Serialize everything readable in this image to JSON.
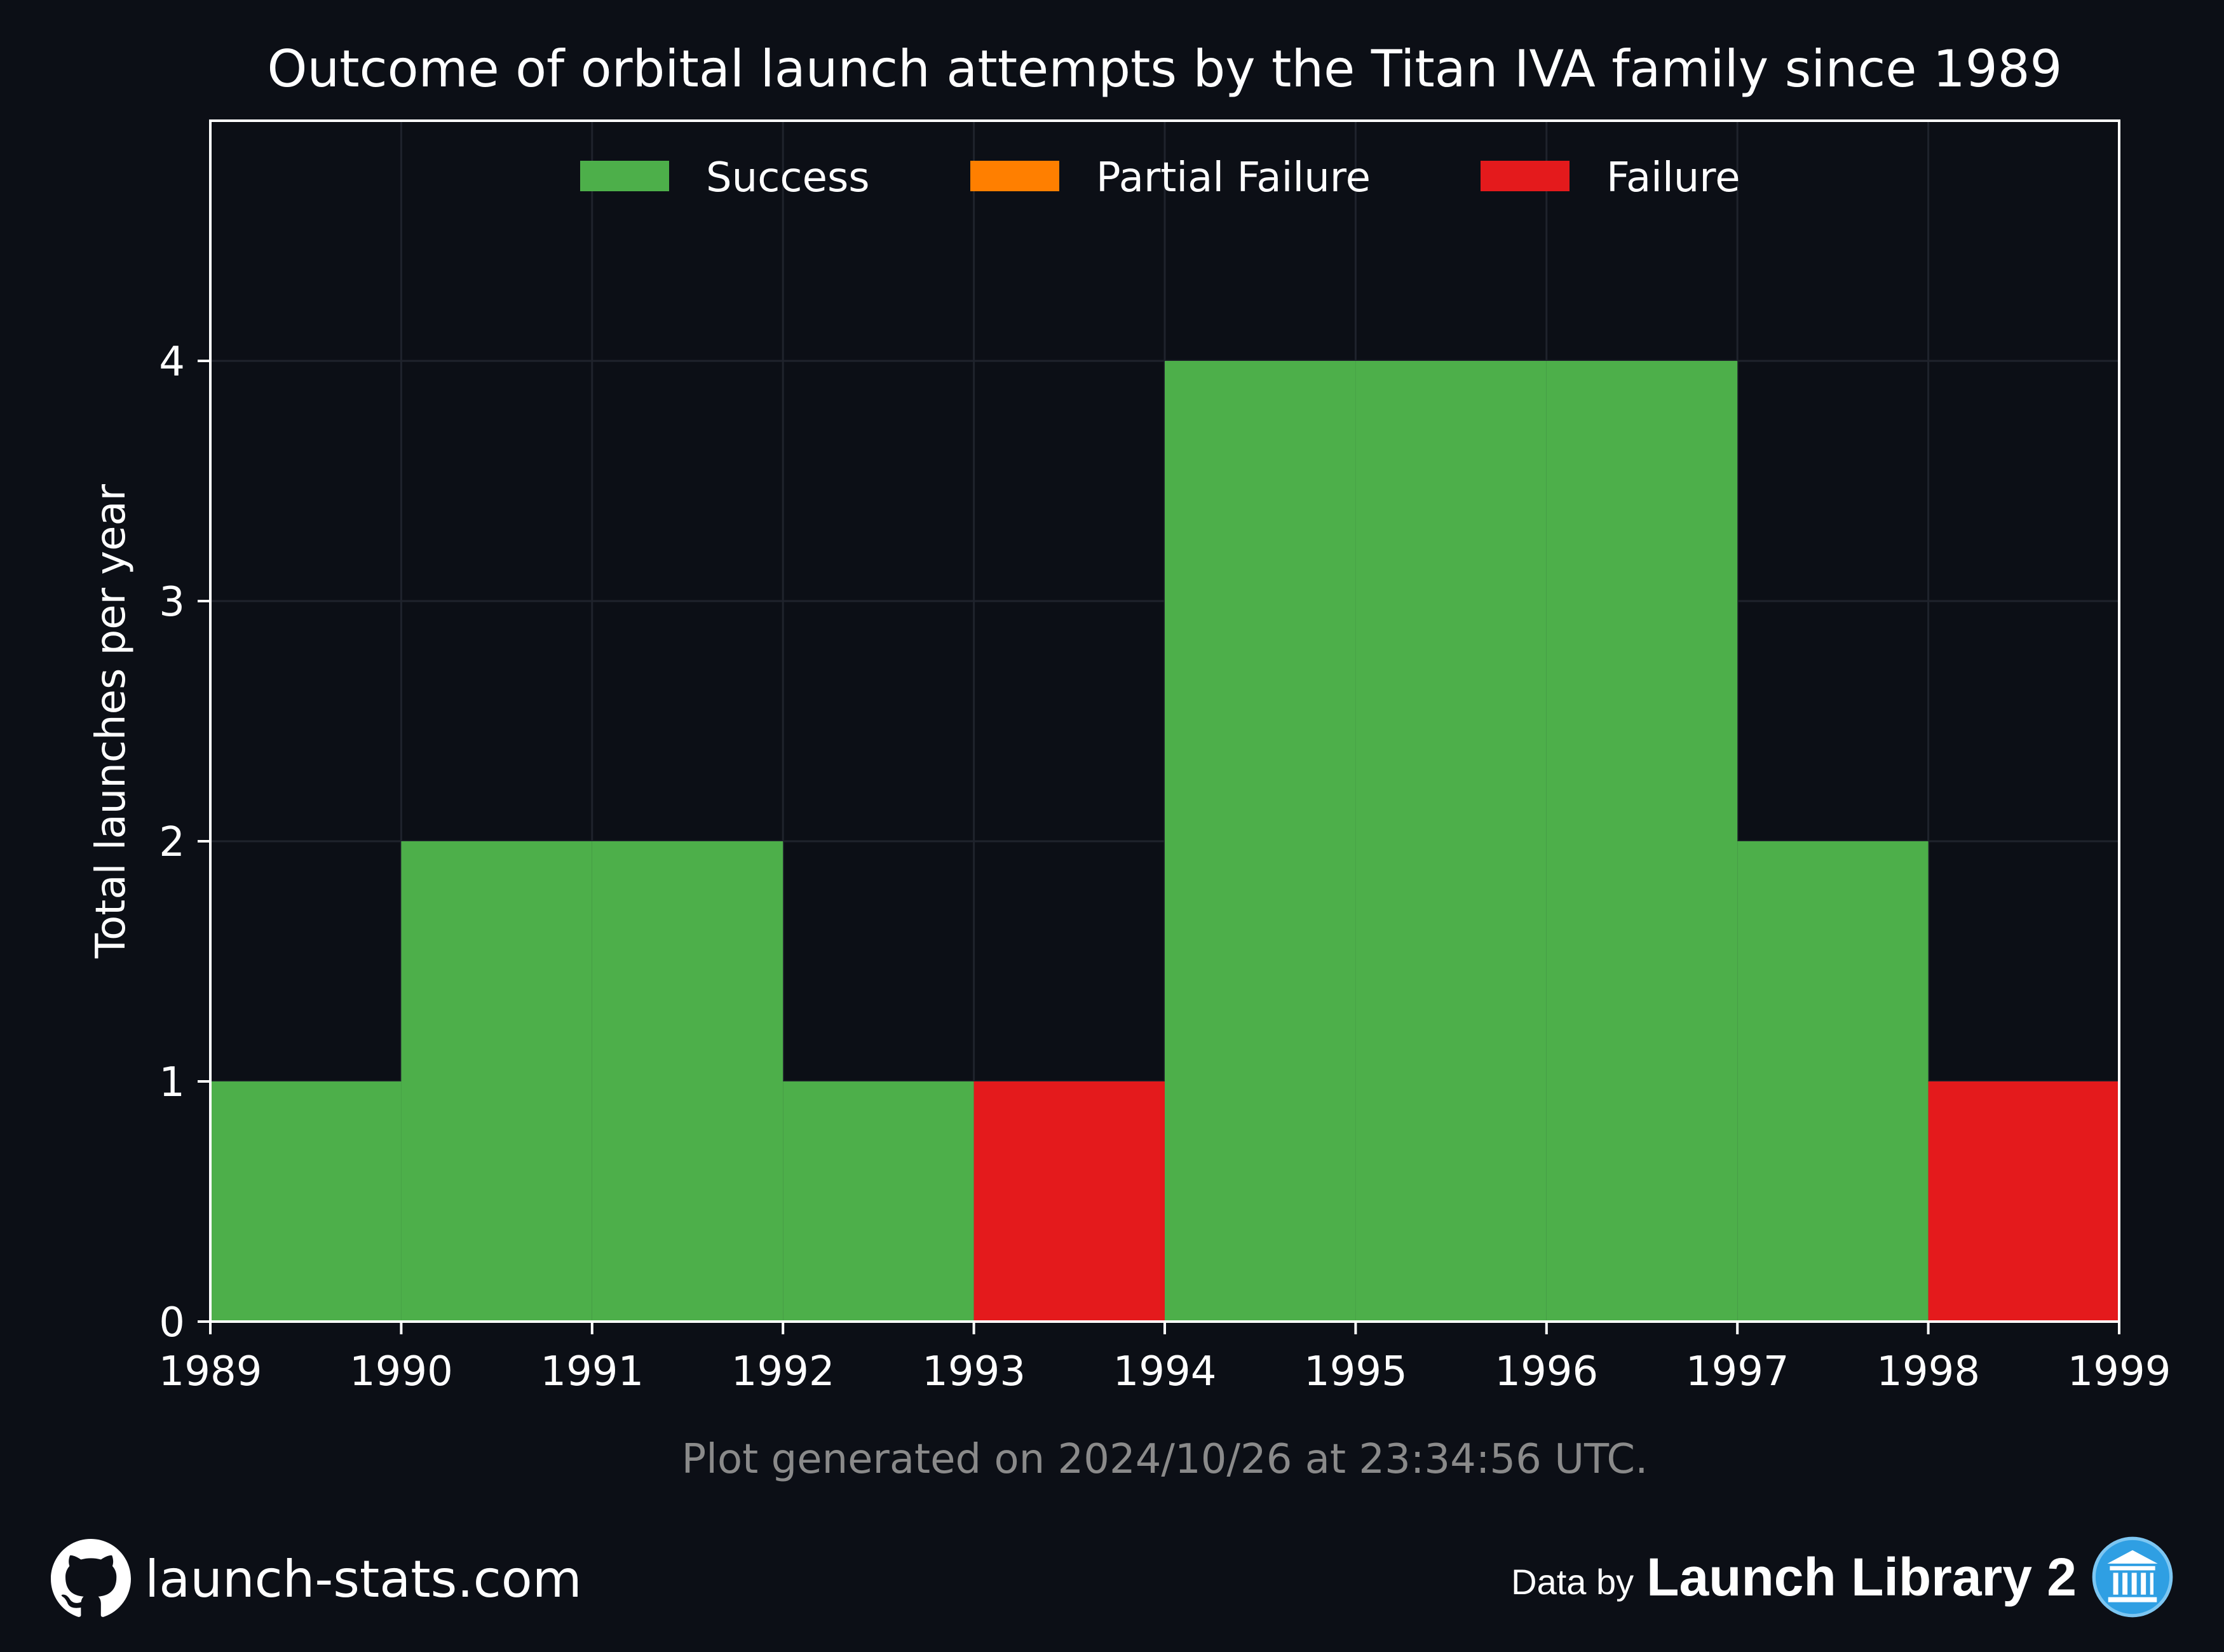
{
  "chart_data": {
    "type": "bar",
    "title": "Outcome of orbital launch attempts by the Titan IVA family since 1989",
    "xlabel": "",
    "ylabel": "Total launches per year",
    "xlim": [
      1989,
      1999
    ],
    "ylim": [
      0,
      5
    ],
    "x_ticks": [
      "1989",
      "1990",
      "1991",
      "1992",
      "1993",
      "1994",
      "1995",
      "1996",
      "1997",
      "1998",
      "1999"
    ],
    "y_ticks": [
      "0",
      "1",
      "2",
      "3",
      "4"
    ],
    "categories": [
      "1989",
      "1990",
      "1991",
      "1992",
      "1993",
      "1994",
      "1995",
      "1996",
      "1997",
      "1998"
    ],
    "series": [
      {
        "name": "Success",
        "color": "#4daf4a",
        "values": [
          1,
          2,
          2,
          1,
          0,
          4,
          4,
          4,
          2,
          0
        ]
      },
      {
        "name": "Partial Failure",
        "color": "#ff7f00",
        "values": [
          0,
          0,
          0,
          0,
          0,
          0,
          0,
          0,
          0,
          0
        ]
      },
      {
        "name": "Failure",
        "color": "#e41a1c",
        "values": [
          0,
          0,
          0,
          0,
          1,
          0,
          0,
          0,
          0,
          1
        ]
      }
    ],
    "stacked": true,
    "grid": true,
    "legend_placement": "top-center",
    "footnote": "Plot generated on 2024/10/26 at 23:34:56 UTC."
  },
  "footer": {
    "site": "launch-stats.com",
    "data_by": "Data by",
    "source": "Launch Library 2",
    "github_icon": "github-icon",
    "source_icon": "launch-library-logo-icon"
  },
  "colors": {
    "background": "#0c0f16",
    "grid": "#1f232c",
    "axis": "#ffffff",
    "footnote": "#8a8a8a"
  }
}
